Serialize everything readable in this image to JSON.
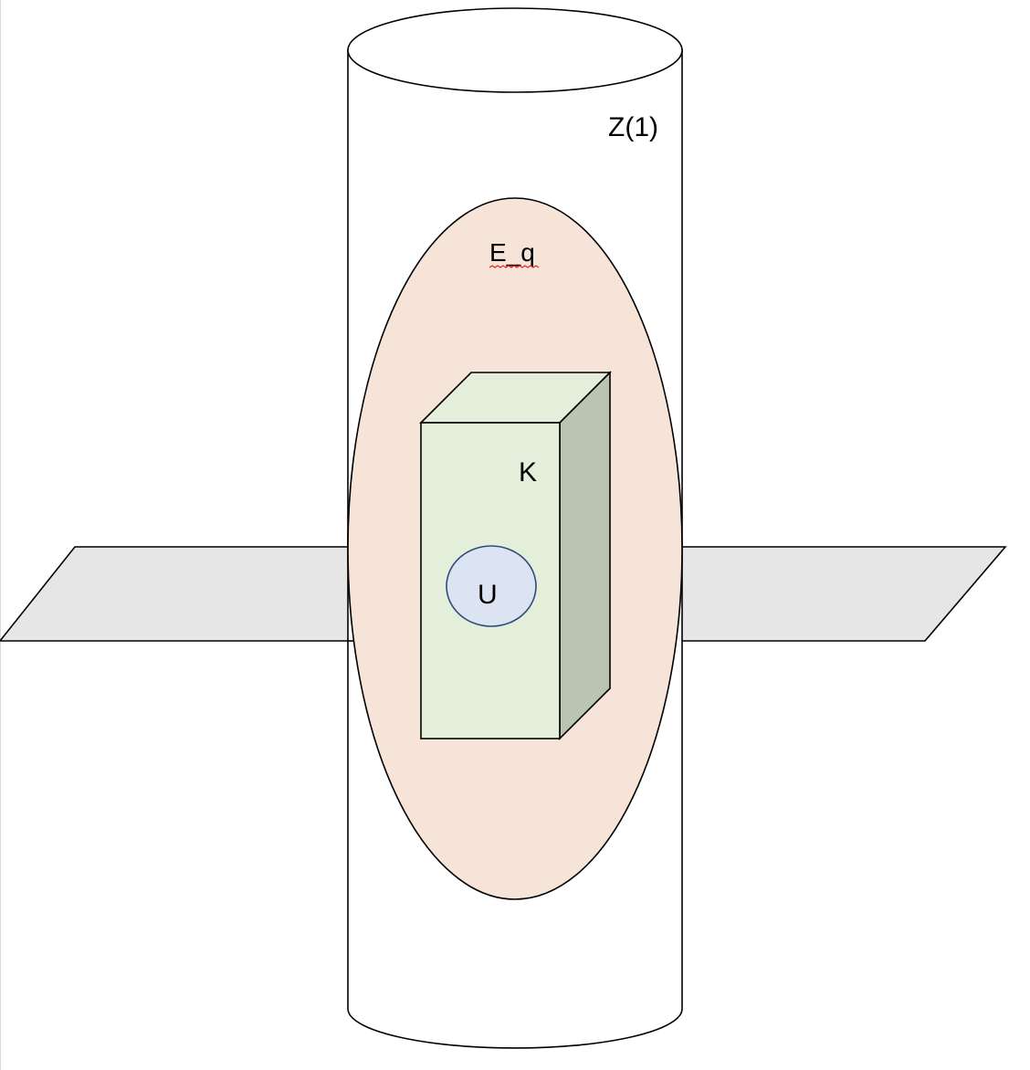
{
  "labels": {
    "cylinder": "Z(1)",
    "ellipse": "E_q",
    "box": "K",
    "circle": "U"
  },
  "colors": {
    "plane_fill": "#e6e6e6",
    "cylinder_fill": "#ffffff",
    "ellipse_fill": "#f7e4d8",
    "box_front_fill": "#e3efda",
    "box_top_fill": "#e3efda",
    "box_side_fill": "#bac4b2",
    "circle_fill": "#dce3f2",
    "circle_stroke": "#2f4d7a",
    "stroke": "#000000",
    "spellcheck_squiggle": "#e0281e"
  }
}
